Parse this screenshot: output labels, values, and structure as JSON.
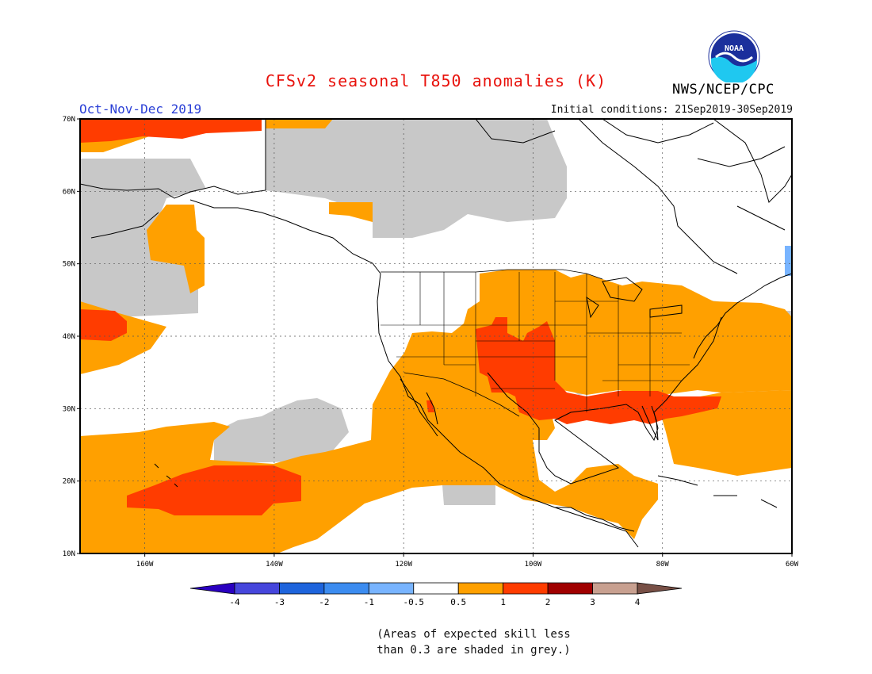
{
  "header": {
    "title": "CFSv2 seasonal T850 anomalies (K)",
    "season": "Oct-Nov-Dec 2019",
    "initial_conditions": "Initial conditions: 21Sep2019-30Sep2019",
    "org": "NWS/NCEP/CPC",
    "logo_text": "NOAA"
  },
  "map": {
    "lon_range": [
      -170,
      -60
    ],
    "lat_range": [
      10,
      70
    ],
    "lat_ticks": [
      {
        "value": 10,
        "label": "10N"
      },
      {
        "value": 20,
        "label": "20N"
      },
      {
        "value": 30,
        "label": "30N"
      },
      {
        "value": 40,
        "label": "40N"
      },
      {
        "value": 50,
        "label": "50N"
      },
      {
        "value": 60,
        "label": "60N"
      },
      {
        "value": 70,
        "label": "70N"
      }
    ],
    "lon_ticks": [
      {
        "value": -160,
        "label": "160W"
      },
      {
        "value": -140,
        "label": "140W"
      },
      {
        "value": -120,
        "label": "120W"
      },
      {
        "value": -100,
        "label": "100W"
      },
      {
        "value": -80,
        "label": "80W"
      },
      {
        "value": -60,
        "label": "60W"
      }
    ],
    "grid": true,
    "colors": {
      "c05_1": "#ffa000",
      "c1_2": "#ff3c00",
      "skill_grey": "#c8c8c8",
      "cm05_m1": "#78b4ff"
    }
  },
  "colorbar": {
    "colors": [
      "#2a00c0",
      "#4646dc",
      "#1e64dc",
      "#3c8cf0",
      "#78b4ff",
      "#ffffff",
      "#ffa000",
      "#ff3c00",
      "#a00000",
      "#c8a090",
      "#785046"
    ],
    "labels": [
      "-4",
      "-3",
      "-2",
      "-1",
      "-0.5",
      "0.5",
      "1",
      "2",
      "3",
      "4"
    ]
  },
  "note": {
    "line1": "(Areas of expected skill less",
    "line2": "than 0.3 are shaded in grey.)"
  }
}
